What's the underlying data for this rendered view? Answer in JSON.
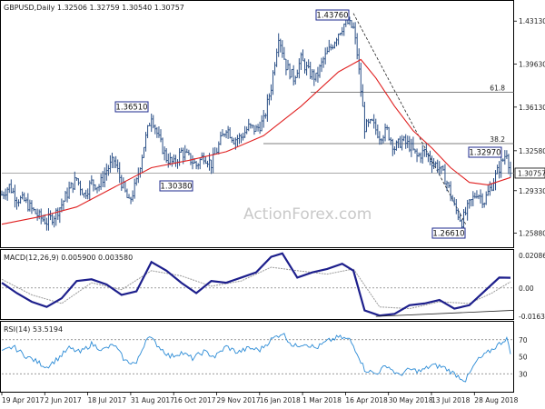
{
  "chart_data": [
    {
      "type": "ohlc",
      "header": "GBPUSD,Daily  1.32506 1.32759 1.30540 1.30757",
      "price_ticks": [
        "1.43130",
        "1.39630",
        "1.36130",
        "1.32580",
        "1.29330",
        "1.25880"
      ],
      "last_price_label": "1.30757",
      "last_price": 1.30757,
      "ylim": [
        1.248,
        1.447
      ],
      "x_ticks": [
        "19 Apr 2017",
        "2 Jun 2017",
        "18 Jul 2017",
        "31 Aug 2017",
        "16 Oct 2017",
        "29 Nov 2017",
        "16 Jan 2018",
        "1 Mar 2018",
        "16 Apr 2018",
        "30 May 2018",
        "13 Jul 2018",
        "28 Aug 2018"
      ],
      "watermark": "ActionForex.com",
      "fib_levels": [
        {
          "label": "61.8",
          "value": 1.3735
        },
        {
          "label": "38.2",
          "value": 1.3316
        }
      ],
      "annotations": [
        {
          "label": "1.43760",
          "value": 1.4376
        },
        {
          "label": "1.36510",
          "value": 1.3651
        },
        {
          "label": "1.30380",
          "value": 1.3038
        },
        {
          "label": "1.32970",
          "value": 1.3297
        },
        {
          "label": "1.26610",
          "value": 1.2661
        }
      ],
      "close_path": [
        [
          0,
          1.29
        ],
        [
          4,
          1.297
        ],
        [
          8,
          1.287
        ],
        [
          12,
          1.285
        ],
        [
          16,
          1.278
        ],
        [
          20,
          1.272
        ],
        [
          24,
          1.268
        ],
        [
          28,
          1.273
        ],
        [
          32,
          1.282
        ],
        [
          36,
          1.294
        ],
        [
          40,
          1.303
        ],
        [
          44,
          1.29
        ],
        [
          48,
          1.3
        ],
        [
          52,
          1.297
        ],
        [
          56,
          1.31
        ],
        [
          60,
          1.318
        ],
        [
          64,
          1.3
        ],
        [
          68,
          1.283
        ],
        [
          72,
          1.3
        ],
        [
          76,
          1.33
        ],
        [
          80,
          1.355
        ],
        [
          84,
          1.335
        ],
        [
          88,
          1.32
        ],
        [
          92,
          1.315
        ],
        [
          96,
          1.325
        ],
        [
          100,
          1.32
        ],
        [
          104,
          1.314
        ],
        [
          108,
          1.322
        ],
        [
          112,
          1.315
        ],
        [
          116,
          1.33
        ],
        [
          120,
          1.345
        ],
        [
          124,
          1.335
        ],
        [
          128,
          1.337
        ],
        [
          132,
          1.345
        ],
        [
          136,
          1.343
        ],
        [
          140,
          1.35
        ],
        [
          144,
          1.378
        ],
        [
          148,
          1.42
        ],
        [
          152,
          1.395
        ],
        [
          156,
          1.385
        ],
        [
          160,
          1.4
        ],
        [
          164,
          1.39
        ],
        [
          168,
          1.385
        ],
        [
          172,
          1.4
        ],
        [
          176,
          1.41
        ],
        [
          180,
          1.422
        ],
        [
          184,
          1.431
        ],
        [
          188,
          1.425
        ],
        [
          190,
          1.405
        ],
        [
          194,
          1.345
        ],
        [
          198,
          1.348
        ],
        [
          202,
          1.338
        ],
        [
          206,
          1.342
        ],
        [
          210,
          1.328
        ],
        [
          214,
          1.334
        ],
        [
          218,
          1.33
        ],
        [
          222,
          1.321
        ],
        [
          226,
          1.325
        ],
        [
          230,
          1.317
        ],
        [
          234,
          1.312
        ],
        [
          238,
          1.3
        ],
        [
          242,
          1.28
        ],
        [
          246,
          1.268
        ],
        [
          250,
          1.282
        ],
        [
          254,
          1.292
        ],
        [
          258,
          1.285
        ],
        [
          262,
          1.298
        ],
        [
          266,
          1.312
        ],
        [
          270,
          1.325
        ],
        [
          272,
          1.3076
        ]
      ],
      "sma_path": [
        [
          0,
          1.266
        ],
        [
          20,
          1.272
        ],
        [
          40,
          1.28
        ],
        [
          60,
          1.296
        ],
        [
          80,
          1.312
        ],
        [
          100,
          1.318
        ],
        [
          120,
          1.325
        ],
        [
          140,
          1.338
        ],
        [
          160,
          1.362
        ],
        [
          180,
          1.39
        ],
        [
          192,
          1.4
        ],
        [
          200,
          1.385
        ],
        [
          210,
          1.362
        ],
        [
          220,
          1.342
        ],
        [
          230,
          1.328
        ],
        [
          240,
          1.312
        ],
        [
          250,
          1.3
        ],
        [
          260,
          1.298
        ],
        [
          272,
          1.304
        ]
      ]
    },
    {
      "type": "line",
      "label": "MACD(12,26,9) 0.005900 0.003580",
      "ticks": [
        "0.020861",
        "0.00",
        "-0.016357"
      ],
      "ylim": [
        -0.0175,
        0.0215
      ],
      "macd_path": [
        [
          0,
          0.003
        ],
        [
          8,
          -0.003
        ],
        [
          16,
          -0.008
        ],
        [
          24,
          -0.011
        ],
        [
          32,
          -0.006
        ],
        [
          40,
          0.004
        ],
        [
          48,
          0.005
        ],
        [
          56,
          0.002
        ],
        [
          64,
          -0.004
        ],
        [
          72,
          -0.002
        ],
        [
          80,
          0.015
        ],
        [
          88,
          0.01
        ],
        [
          96,
          0.003
        ],
        [
          104,
          -0.003
        ],
        [
          112,
          0.004
        ],
        [
          120,
          0.003
        ],
        [
          128,
          0.006
        ],
        [
          136,
          0.009
        ],
        [
          144,
          0.018
        ],
        [
          150,
          0.02
        ],
        [
          158,
          0.006
        ],
        [
          166,
          0.009
        ],
        [
          174,
          0.011
        ],
        [
          182,
          0.014
        ],
        [
          188,
          0.01
        ],
        [
          194,
          -0.013
        ],
        [
          202,
          -0.016
        ],
        [
          210,
          -0.015
        ],
        [
          218,
          -0.01
        ],
        [
          226,
          -0.009
        ],
        [
          234,
          -0.007
        ],
        [
          242,
          -0.012
        ],
        [
          250,
          -0.01
        ],
        [
          258,
          -0.002
        ],
        [
          266,
          0.006
        ],
        [
          272,
          0.0059
        ]
      ],
      "signal_path": [
        [
          0,
          0.005
        ],
        [
          16,
          -0.004
        ],
        [
          32,
          -0.009
        ],
        [
          48,
          0.003
        ],
        [
          64,
          -0.001
        ],
        [
          80,
          0.01
        ],
        [
          96,
          0.007
        ],
        [
          112,
          0.001
        ],
        [
          128,
          0.004
        ],
        [
          144,
          0.012
        ],
        [
          158,
          0.01
        ],
        [
          174,
          0.008
        ],
        [
          188,
          0.011
        ],
        [
          202,
          -0.011
        ],
        [
          218,
          -0.012
        ],
        [
          234,
          -0.008
        ],
        [
          250,
          -0.009
        ],
        [
          262,
          -0.003
        ],
        [
          272,
          0.00358
        ]
      ],
      "trendline": [
        [
          200,
          -0.0165
        ],
        [
          272,
          -0.013
        ]
      ]
    },
    {
      "type": "line",
      "label": "RSI(14) 53.5194",
      "ticks": [
        "70",
        "50",
        "30"
      ],
      "ylim": [
        10,
        90
      ],
      "rsi_path": [
        [
          0,
          55
        ],
        [
          6,
          62
        ],
        [
          12,
          52
        ],
        [
          18,
          45
        ],
        [
          24,
          38
        ],
        [
          30,
          48
        ],
        [
          36,
          60
        ],
        [
          42,
          55
        ],
        [
          48,
          65
        ],
        [
          54,
          58
        ],
        [
          60,
          64
        ],
        [
          66,
          45
        ],
        [
          72,
          42
        ],
        [
          78,
          75
        ],
        [
          84,
          62
        ],
        [
          90,
          50
        ],
        [
          96,
          55
        ],
        [
          102,
          48
        ],
        [
          108,
          56
        ],
        [
          114,
          50
        ],
        [
          120,
          62
        ],
        [
          126,
          55
        ],
        [
          132,
          60
        ],
        [
          138,
          58
        ],
        [
          144,
          70
        ],
        [
          150,
          78
        ],
        [
          156,
          62
        ],
        [
          162,
          66
        ],
        [
          168,
          60
        ],
        [
          174,
          68
        ],
        [
          180,
          73
        ],
        [
          186,
          70
        ],
        [
          190,
          55
        ],
        [
          194,
          35
        ],
        [
          200,
          30
        ],
        [
          206,
          40
        ],
        [
          212,
          28
        ],
        [
          218,
          35
        ],
        [
          224,
          33
        ],
        [
          230,
          40
        ],
        [
          236,
          38
        ],
        [
          242,
          30
        ],
        [
          248,
          22
        ],
        [
          254,
          45
        ],
        [
          260,
          55
        ],
        [
          266,
          65
        ],
        [
          270,
          72
        ],
        [
          272,
          53.5
        ]
      ]
    }
  ]
}
